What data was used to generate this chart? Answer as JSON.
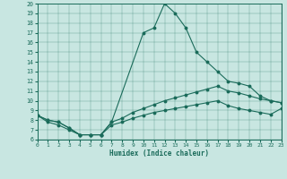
{
  "xlabel": "Humidex (Indice chaleur)",
  "bg_color": "#c8e6e1",
  "line_color": "#1a6b5a",
  "xlim": [
    0,
    23
  ],
  "ylim": [
    6,
    20
  ],
  "yticks": [
    6,
    7,
    8,
    9,
    10,
    11,
    12,
    13,
    14,
    15,
    16,
    17,
    18,
    19,
    20
  ],
  "xticks": [
    0,
    1,
    2,
    3,
    4,
    5,
    6,
    7,
    8,
    9,
    10,
    11,
    12,
    13,
    14,
    15,
    16,
    17,
    18,
    19,
    20,
    21,
    22,
    23
  ],
  "series": [
    {
      "x": [
        0,
        1,
        2,
        3,
        4,
        5,
        6,
        7,
        10,
        11,
        12,
        13,
        14,
        15,
        16,
        17,
        18,
        19,
        20,
        21,
        22,
        23
      ],
      "y": [
        8.5,
        7.8,
        7.5,
        7.0,
        6.5,
        6.5,
        6.5,
        7.8,
        17.0,
        17.5,
        20.0,
        19.0,
        17.5,
        15.0,
        14.0,
        13.0,
        12.0,
        11.8,
        11.5,
        10.5,
        10.0,
        9.8
      ]
    },
    {
      "x": [
        0,
        1,
        2,
        3,
        4,
        5,
        6,
        7,
        8,
        9,
        10,
        11,
        12,
        13,
        14,
        15,
        16,
        17,
        18,
        19,
        20,
        21,
        22,
        23
      ],
      "y": [
        8.5,
        8.0,
        7.8,
        7.2,
        6.5,
        6.5,
        6.5,
        7.8,
        8.2,
        8.8,
        9.2,
        9.6,
        10.0,
        10.3,
        10.6,
        10.9,
        11.2,
        11.5,
        11.0,
        10.8,
        10.5,
        10.2,
        10.0,
        9.8
      ]
    },
    {
      "x": [
        0,
        1,
        2,
        3,
        4,
        5,
        6,
        7,
        8,
        9,
        10,
        11,
        12,
        13,
        14,
        15,
        16,
        17,
        18,
        19,
        20,
        21,
        22,
        23
      ],
      "y": [
        8.5,
        8.0,
        7.8,
        7.2,
        6.5,
        6.5,
        6.5,
        7.5,
        7.8,
        8.2,
        8.5,
        8.8,
        9.0,
        9.2,
        9.4,
        9.6,
        9.8,
        10.0,
        9.5,
        9.2,
        9.0,
        8.8,
        8.6,
        9.2
      ]
    }
  ]
}
